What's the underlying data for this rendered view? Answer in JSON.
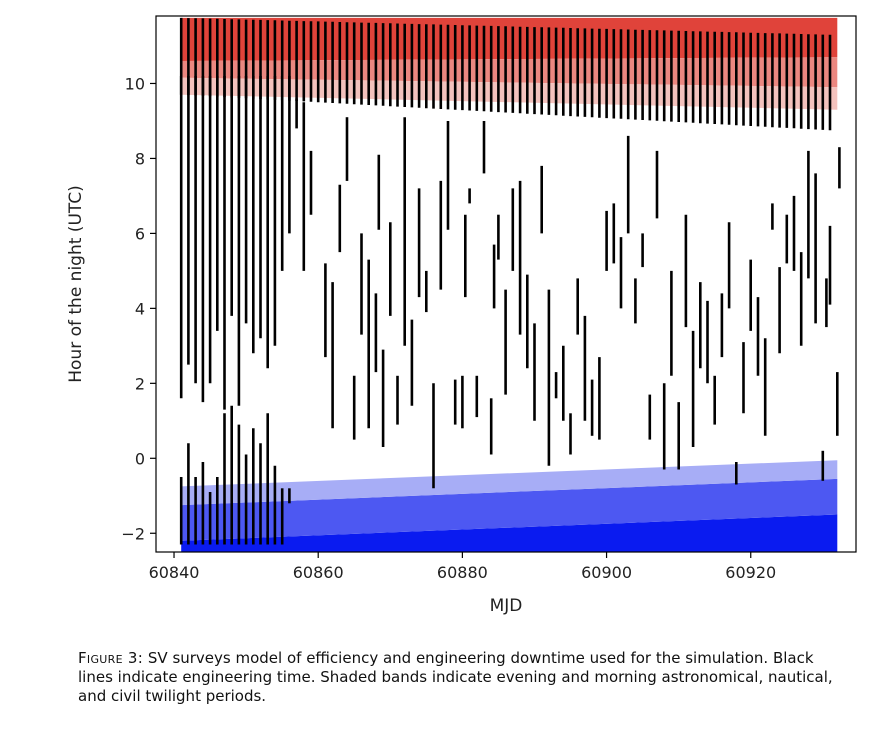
{
  "chart_data": {
    "type": "scatter",
    "title": "",
    "xlabel": "MJD",
    "ylabel": "Hour of the night (UTC)",
    "xlim": [
      60837.5,
      60934.6
    ],
    "ylim": [
      -2.5,
      11.8
    ],
    "xticks": [
      60840,
      60860,
      60880,
      60900,
      60920
    ],
    "yticks": [
      -2,
      0,
      2,
      4,
      6,
      8,
      10
    ],
    "ytick_labels": [
      "−2",
      "0",
      "2",
      "4",
      "6",
      "8",
      "10"
    ],
    "grid": false,
    "legend": "none",
    "bands": {
      "mjd_start": 60841.0,
      "mjd_end": 60932.0,
      "evening": [
        {
          "name": "astronomical twilight",
          "color": "#0a1bf0",
          "lo": [
            -2.5,
            -2.5
          ],
          "hi": [
            -2.2,
            -1.5
          ]
        },
        {
          "name": "nautical twilight",
          "color": "#4d58f2",
          "lo": [
            -2.2,
            -1.5
          ],
          "hi": [
            -1.25,
            -0.55
          ]
        },
        {
          "name": "civil twilight",
          "color": "#a7adf6",
          "lo": [
            -1.25,
            -0.55
          ],
          "hi": [
            -0.75,
            -0.05
          ]
        }
      ],
      "morning": [
        {
          "name": "civil twilight",
          "color": "#e0433a",
          "lo": [
            10.6,
            10.7
          ],
          "hi": [
            11.75,
            11.75
          ]
        },
        {
          "name": "nautical twilight",
          "color": "#eb8780",
          "lo": [
            10.15,
            9.9
          ],
          "hi": [
            10.6,
            10.7
          ]
        },
        {
          "name": "astronomical twilight",
          "color": "#f3c2bd",
          "lo": [
            9.7,
            9.3
          ],
          "hi": [
            10.15,
            9.9
          ]
        }
      ]
    },
    "engineering_time_top": {
      "description": "Black lines indicate engineering time (upper block)",
      "nights": [
        60841,
        60842,
        60843,
        60844,
        60845,
        60846,
        60847,
        60848,
        60849,
        60850,
        60851,
        60852,
        60853,
        60854,
        60855,
        60856,
        60857,
        60858,
        60859,
        60860,
        60861,
        60862,
        60863,
        60864,
        60865,
        60866,
        60867,
        60868,
        60869,
        60870,
        60871,
        60872,
        60873,
        60874,
        60875,
        60876,
        60877,
        60878,
        60879,
        60880,
        60881,
        60882,
        60883,
        60884,
        60885,
        60886,
        60887,
        60888,
        60889,
        60890,
        60891,
        60892,
        60893,
        60894,
        60895,
        60896,
        60897,
        60898,
        60899,
        60900,
        60901,
        60902,
        60903,
        60904,
        60905,
        60906,
        60907,
        60908,
        60909,
        60910,
        60911,
        60912,
        60913,
        60914,
        60915,
        60916,
        60917,
        60918,
        60919,
        60920,
        60921,
        60922,
        60923,
        60924,
        60925,
        60926,
        60927,
        60928,
        60929,
        60930,
        60931
      ],
      "top": [
        11.75,
        11.3
      ],
      "bottom": [
        9.7,
        8.75
      ]
    },
    "engineering_time_full_nights": [
      {
        "mjd": 60841,
        "start": 1.6,
        "end": 10.2
      },
      {
        "mjd": 60842,
        "start": 2.5,
        "end": 10.2
      },
      {
        "mjd": 60843,
        "start": 2.0,
        "end": 10.2
      },
      {
        "mjd": 60844,
        "start": 1.5,
        "end": 10.2
      },
      {
        "mjd": 60845,
        "start": 2.0,
        "end": 10.2
      },
      {
        "mjd": 60846,
        "start": 3.4,
        "end": 10.2
      },
      {
        "mjd": 60847,
        "start": 1.3,
        "end": 10.2
      },
      {
        "mjd": 60848,
        "start": 3.8,
        "end": 10.2
      },
      {
        "mjd": 60849,
        "start": 1.4,
        "end": 10.2
      },
      {
        "mjd": 60850,
        "start": 3.6,
        "end": 10.2
      },
      {
        "mjd": 60851,
        "start": 2.8,
        "end": 10.2
      },
      {
        "mjd": 60852,
        "start": 3.2,
        "end": 10.2
      },
      {
        "mjd": 60853,
        "start": 2.4,
        "end": 10.2
      },
      {
        "mjd": 60854,
        "start": 3.0,
        "end": 10.2
      },
      {
        "mjd": 60855,
        "start": 5.0,
        "end": 10.2
      },
      {
        "mjd": 60856,
        "start": 6.0,
        "end": 10.2
      }
    ],
    "engineering_time_evening": [
      {
        "mjd": 60841,
        "start": -2.3,
        "end": -0.5
      },
      {
        "mjd": 60842,
        "start": -2.3,
        "end": 0.4
      },
      {
        "mjd": 60843,
        "start": -2.3,
        "end": -0.5
      },
      {
        "mjd": 60844,
        "start": -2.3,
        "end": -0.1
      },
      {
        "mjd": 60845,
        "start": -2.3,
        "end": -0.9
      },
      {
        "mjd": 60846,
        "start": -2.3,
        "end": -0.5
      },
      {
        "mjd": 60847,
        "start": -2.3,
        "end": 1.2
      },
      {
        "mjd": 60848,
        "start": -2.3,
        "end": 1.4
      },
      {
        "mjd": 60849,
        "start": -2.3,
        "end": 0.9
      },
      {
        "mjd": 60850,
        "start": -2.3,
        "end": 0.1
      },
      {
        "mjd": 60851,
        "start": -2.3,
        "end": 0.8
      },
      {
        "mjd": 60852,
        "start": -2.3,
        "end": 0.4
      },
      {
        "mjd": 60853,
        "start": -2.3,
        "end": 1.2
      },
      {
        "mjd": 60854,
        "start": -2.3,
        "end": -0.2
      },
      {
        "mjd": 60855,
        "start": -2.3,
        "end": -0.8
      },
      {
        "mjd": 60856,
        "start": -1.2,
        "end": -0.8
      }
    ],
    "engineering_time_segments": [
      {
        "mjd": 60857,
        "start": 8.8,
        "end": 9.6
      },
      {
        "mjd": 60858,
        "start": 5.0,
        "end": 9.5
      },
      {
        "mjd": 60859,
        "start": 6.5,
        "end": 8.2
      },
      {
        "mjd": 60861,
        "start": 2.7,
        "end": 5.2
      },
      {
        "mjd": 60862,
        "start": 0.8,
        "end": 4.7
      },
      {
        "mjd": 60863,
        "start": 5.5,
        "end": 7.3
      },
      {
        "mjd": 60864,
        "start": 7.4,
        "end": 9.1
      },
      {
        "mjd": 60865,
        "start": 0.5,
        "end": 2.2
      },
      {
        "mjd": 60866,
        "start": 3.3,
        "end": 6.0
      },
      {
        "mjd": 60867,
        "start": 0.8,
        "end": 5.3
      },
      {
        "mjd": 60868,
        "start": 2.3,
        "end": 4.4
      },
      {
        "mjd": 60868.4,
        "start": 6.1,
        "end": 8.1
      },
      {
        "mjd": 60869,
        "start": 0.3,
        "end": 2.9
      },
      {
        "mjd": 60870,
        "start": 3.8,
        "end": 6.3
      },
      {
        "mjd": 60871,
        "start": 0.9,
        "end": 2.2
      },
      {
        "mjd": 60872,
        "start": 3.0,
        "end": 9.1
      },
      {
        "mjd": 60873,
        "start": 1.4,
        "end": 3.7
      },
      {
        "mjd": 60874,
        "start": 4.3,
        "end": 7.2
      },
      {
        "mjd": 60875,
        "start": 3.9,
        "end": 5.0
      },
      {
        "mjd": 60876,
        "start": -0.8,
        "end": 2.0
      },
      {
        "mjd": 60877,
        "start": 4.5,
        "end": 7.4
      },
      {
        "mjd": 60878,
        "start": 6.1,
        "end": 9.0
      },
      {
        "mjd": 60879,
        "start": 0.9,
        "end": 2.1
      },
      {
        "mjd": 60880,
        "start": 0.8,
        "end": 2.2
      },
      {
        "mjd": 60880.4,
        "start": 4.3,
        "end": 6.5
      },
      {
        "mjd": 60881,
        "start": 6.8,
        "end": 7.2
      },
      {
        "mjd": 60882,
        "start": 1.1,
        "end": 2.2
      },
      {
        "mjd": 60883,
        "start": 7.6,
        "end": 9.0
      },
      {
        "mjd": 60884,
        "start": 0.1,
        "end": 1.6
      },
      {
        "mjd": 60884.4,
        "start": 4.0,
        "end": 5.7
      },
      {
        "mjd": 60885,
        "start": 5.3,
        "end": 6.5
      },
      {
        "mjd": 60886,
        "start": 1.7,
        "end": 4.5
      },
      {
        "mjd": 60887,
        "start": 5.0,
        "end": 7.2
      },
      {
        "mjd": 60888,
        "start": 3.3,
        "end": 7.4
      },
      {
        "mjd": 60889,
        "start": 2.4,
        "end": 4.9
      },
      {
        "mjd": 60890,
        "start": 1.0,
        "end": 3.6
      },
      {
        "mjd": 60891,
        "start": 6.0,
        "end": 7.8
      },
      {
        "mjd": 60892,
        "start": -0.2,
        "end": 4.5
      },
      {
        "mjd": 60893,
        "start": 1.6,
        "end": 2.3
      },
      {
        "mjd": 60894,
        "start": 1.0,
        "end": 3.0
      },
      {
        "mjd": 60895,
        "start": 0.1,
        "end": 1.2
      },
      {
        "mjd": 60896,
        "start": 3.3,
        "end": 4.8
      },
      {
        "mjd": 60897,
        "start": 1.0,
        "end": 3.8
      },
      {
        "mjd": 60898,
        "start": 0.6,
        "end": 2.1
      },
      {
        "mjd": 60899,
        "start": 0.5,
        "end": 2.7
      },
      {
        "mjd": 60900,
        "start": 5.0,
        "end": 6.6
      },
      {
        "mjd": 60901,
        "start": 5.2,
        "end": 6.8
      },
      {
        "mjd": 60902,
        "start": 4.0,
        "end": 5.9
      },
      {
        "mjd": 60903,
        "start": 6.0,
        "end": 8.6
      },
      {
        "mjd": 60904,
        "start": 3.6,
        "end": 4.8
      },
      {
        "mjd": 60905,
        "start": 5.1,
        "end": 6.0
      },
      {
        "mjd": 60906,
        "start": 0.5,
        "end": 1.7
      },
      {
        "mjd": 60907,
        "start": 6.4,
        "end": 8.2
      },
      {
        "mjd": 60908,
        "start": -0.3,
        "end": 2.0
      },
      {
        "mjd": 60909,
        "start": 2.2,
        "end": 5.0
      },
      {
        "mjd": 60910,
        "start": -0.3,
        "end": 1.5
      },
      {
        "mjd": 60911,
        "start": 3.5,
        "end": 6.5
      },
      {
        "mjd": 60912,
        "start": 0.3,
        "end": 3.4
      },
      {
        "mjd": 60913,
        "start": 2.4,
        "end": 4.7
      },
      {
        "mjd": 60914,
        "start": 2.0,
        "end": 4.2
      },
      {
        "mjd": 60915,
        "start": 0.9,
        "end": 2.2
      },
      {
        "mjd": 60916,
        "start": 2.7,
        "end": 4.4
      },
      {
        "mjd": 60917,
        "start": 4.0,
        "end": 6.3
      },
      {
        "mjd": 60918,
        "start": -0.7,
        "end": -0.1
      },
      {
        "mjd": 60919,
        "start": 1.2,
        "end": 3.1
      },
      {
        "mjd": 60920,
        "start": 3.4,
        "end": 5.3
      },
      {
        "mjd": 60921,
        "start": 2.2,
        "end": 4.3
      },
      {
        "mjd": 60922,
        "start": 0.6,
        "end": 3.2
      },
      {
        "mjd": 60923,
        "start": 6.1,
        "end": 6.8
      },
      {
        "mjd": 60924,
        "start": 2.8,
        "end": 5.1
      },
      {
        "mjd": 60925,
        "start": 5.2,
        "end": 6.5
      },
      {
        "mjd": 60926,
        "start": 5.0,
        "end": 7.0
      },
      {
        "mjd": 60927,
        "start": 3.0,
        "end": 5.5
      },
      {
        "mjd": 60928,
        "start": 4.8,
        "end": 8.2
      },
      {
        "mjd": 60929,
        "start": 3.6,
        "end": 7.6
      },
      {
        "mjd": 60930,
        "start": -0.6,
        "end": 0.2
      },
      {
        "mjd": 60930.5,
        "start": 3.5,
        "end": 4.8
      },
      {
        "mjd": 60931,
        "start": 4.1,
        "end": 6.2
      },
      {
        "mjd": 60932,
        "start": 0.6,
        "end": 2.3
      },
      {
        "mjd": 60932.3,
        "start": 7.2,
        "end": 8.3
      }
    ]
  },
  "caption": {
    "label": "Figure 3:",
    "text": "SV surveys model of efficiency and engineering downtime used for the simulation. Black lines indicate engineering time.  Shaded bands indicate evening and morning astronomical, nautical, and civil twilight periods."
  }
}
